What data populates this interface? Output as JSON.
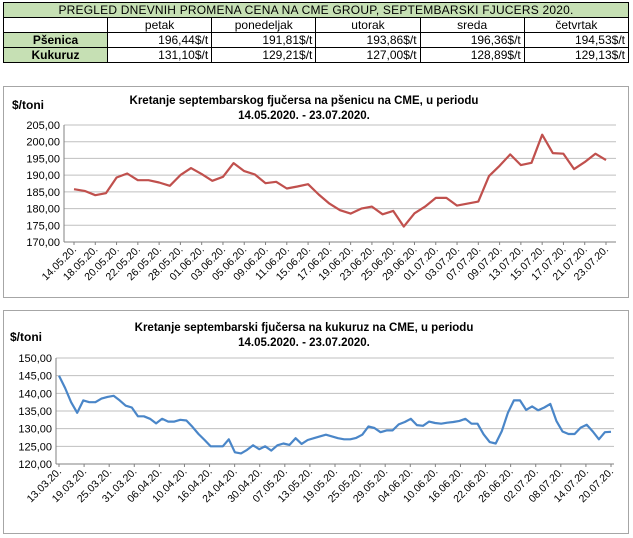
{
  "table": {
    "title": "PREGLED DNEVNIH PROMENA CENA NA CME GROUP, SEPTEMBARSKI  FJUCERS 2020.",
    "days": [
      "petak",
      "ponedeljak",
      "utorak",
      "sreda",
      "četvrtak"
    ],
    "rows": [
      {
        "label": "Pšenica",
        "values": [
          "196,44$/t",
          "191,81$/t",
          "193,86$/t",
          "196,36$/t",
          "194,53$/t"
        ]
      },
      {
        "label": "Kukuruz",
        "values": [
          "131,10$/t",
          "129,21$/t",
          "127,00$/t",
          "128,89$/t",
          "129,13$/t"
        ]
      }
    ]
  },
  "chart_data": [
    {
      "type": "line",
      "title": "Kretanje septembarskog fjučersa na  pšenicu na CME, u periodu",
      "subtitle": "14.05.2020. - 23.07.2020.",
      "ylabel": "$/toni",
      "ylim": [
        170,
        205
      ],
      "yticks": [
        "170,00",
        "175,00",
        "180,00",
        "185,00",
        "190,00",
        "195,00",
        "200,00",
        "205,00"
      ],
      "xtick_labels": [
        "14.05.20.",
        "18.05.20.",
        "20.05.20.",
        "22.05.20.",
        "26.05.20.",
        "28.05.20.",
        "01.06.20.",
        "03.06.20.",
        "05.06.20.",
        "09.06.20.",
        "11.06.20.",
        "15.06.20.",
        "17.06.20.",
        "19.06.20.",
        "23.06.20.",
        "25.06.20.",
        "29.06.20.",
        "01.07.20.",
        "03.07.20.",
        "07.07.20.",
        "09.07.20.",
        "13.07.20.",
        "15.07.20.",
        "17.07.20.",
        "21.07.20.",
        "23.07.20."
      ],
      "color": "#c0504d",
      "grid": true,
      "series": [
        {
          "values": [
            185.8,
            185.3,
            184.0,
            184.6,
            189.3,
            190.5,
            188.5,
            188.5,
            187.8,
            186.8,
            190.0,
            192.1,
            190.3,
            188.3,
            189.5,
            193.6,
            191.2,
            190.2,
            187.6,
            188.0,
            186.0,
            186.6,
            187.3,
            184.2,
            181.5,
            179.5,
            178.5,
            180.0,
            180.6,
            178.3,
            179.3,
            174.6,
            178.6,
            180.6,
            183.2,
            183.2,
            180.9,
            181.5,
            182.1,
            189.7,
            192.8,
            196.2,
            193.0,
            193.7,
            202.1,
            196.6,
            196.4,
            191.8,
            193.9,
            196.4,
            194.5
          ]
        }
      ]
    },
    {
      "type": "line",
      "title": "Kretanje septembarski fjučersa na  kukuruz na CME, u periodu",
      "subtitle": "14.05.2020. - 23.07.2020.",
      "ylabel": "$/toni",
      "ylim": [
        120,
        150
      ],
      "yticks": [
        "120,00",
        "125,00",
        "130,00",
        "135,00",
        "140,00",
        "145,00",
        "150,00"
      ],
      "xtick_labels": [
        "13.03.20.",
        "19.03.20.",
        "25.03.20.",
        "31.03.20.",
        "06.04.20.",
        "10.04.20.",
        "16.04.20.",
        "24.04.20.",
        "30.04.20.",
        "07.05.20.",
        "13.05.20.",
        "19.05.20.",
        "25.05.20.",
        "29.05.20.",
        "04.06.20.",
        "10.06.20.",
        "16.06.20.",
        "22.06.20.",
        "26.06.20.",
        "02.07.20.",
        "08.07.20.",
        "14.07.20.",
        "20.07.20."
      ],
      "color": "#4a86c8",
      "grid": true,
      "series": [
        {
          "values": [
            145.0,
            141.5,
            137.5,
            134.5,
            138.0,
            137.5,
            137.5,
            138.5,
            139.0,
            139.3,
            138.0,
            136.5,
            136.0,
            133.5,
            133.5,
            132.8,
            131.5,
            132.8,
            132.0,
            132.0,
            132.5,
            132.3,
            130.5,
            128.5,
            126.8,
            125.0,
            125.0,
            125.0,
            127.0,
            123.3,
            123.0,
            124.0,
            125.3,
            124.2,
            125.0,
            123.8,
            125.3,
            125.8,
            125.4,
            127.3,
            125.7,
            126.8,
            127.3,
            127.8,
            128.3,
            127.8,
            127.3,
            127.0,
            127.0,
            127.4,
            128.3,
            130.6,
            130.2,
            129.0,
            129.5,
            129.5,
            131.2,
            131.9,
            132.8,
            131.0,
            130.8,
            132.0,
            131.6,
            131.4,
            131.7,
            131.9,
            132.2,
            132.8,
            131.4,
            131.4,
            128.4,
            126.2,
            125.8,
            129.3,
            134.5,
            138.0,
            138.0,
            135.3,
            136.3,
            135.2,
            136.0,
            137.0,
            132.2,
            129.2,
            128.5,
            128.5,
            130.3,
            131.1,
            129.2,
            127.0,
            129.0,
            129.1
          ]
        }
      ]
    }
  ]
}
